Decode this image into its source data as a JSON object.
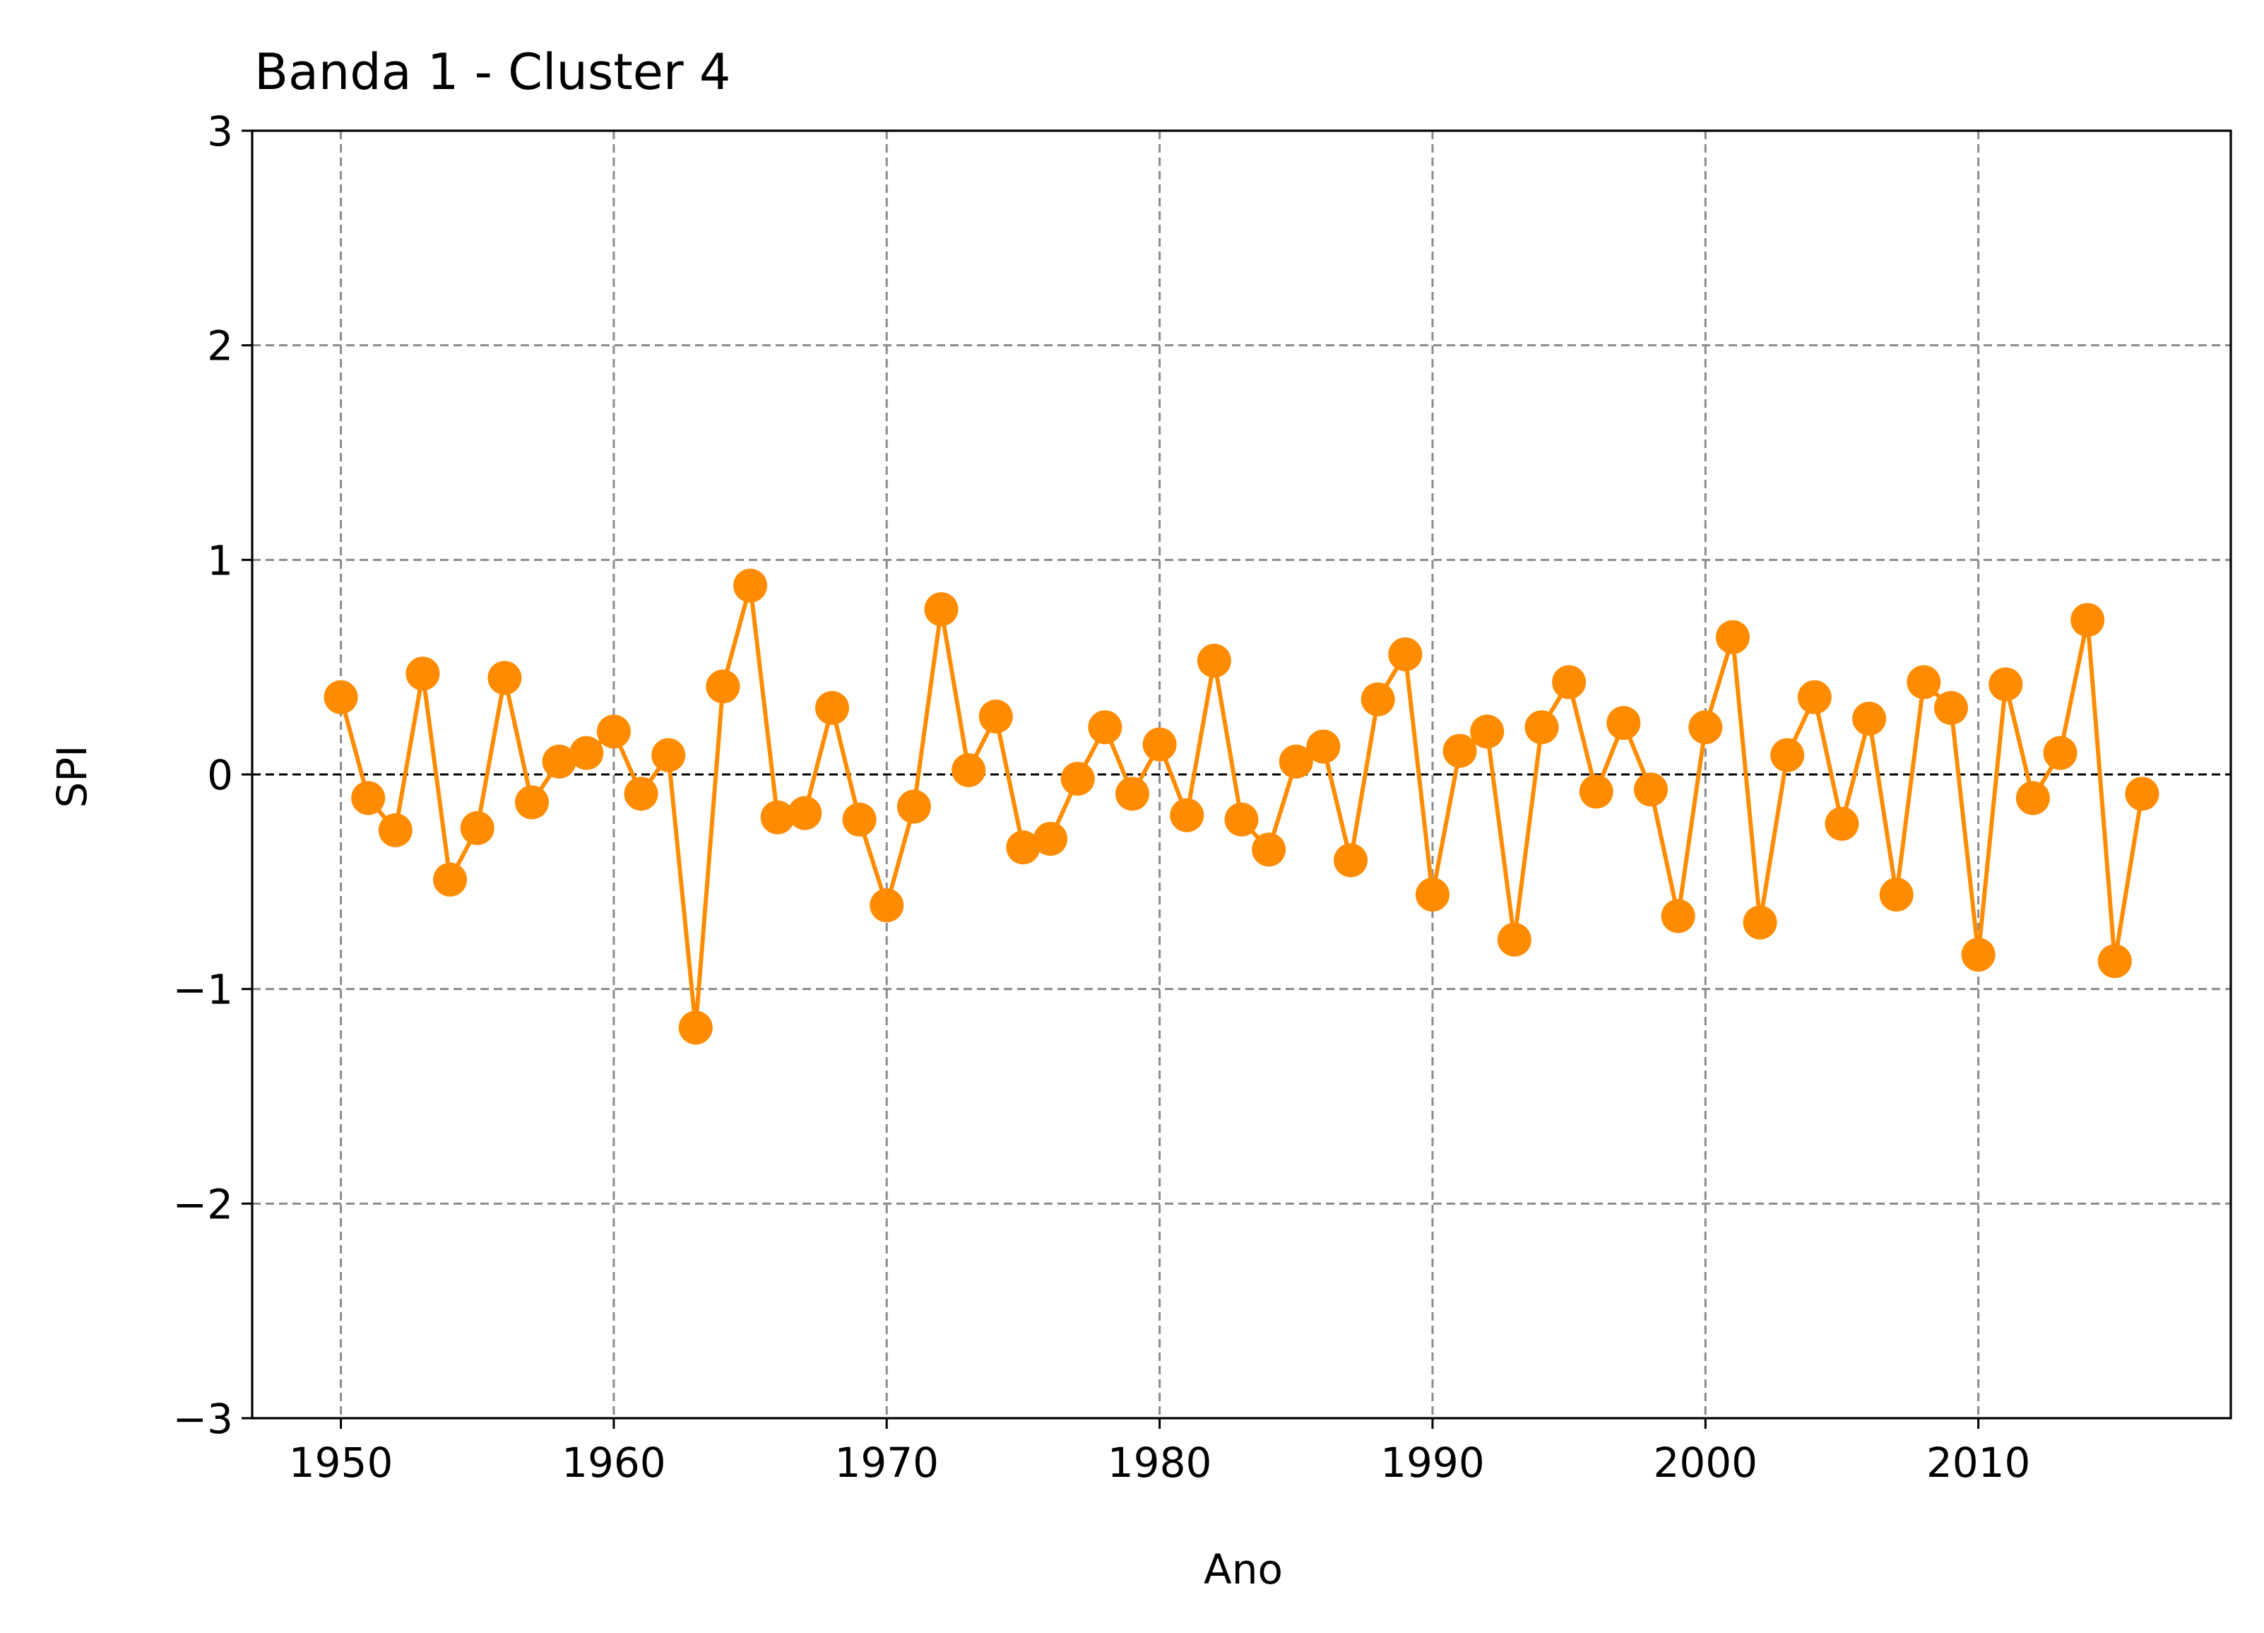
{
  "chart_data": {
    "type": "line",
    "title": "Banda 1 - Cluster 4",
    "xlabel": "Ano",
    "ylabel": "SPI",
    "xlim": [
      1946.75,
      2019.25
    ],
    "ylim": [
      -3,
      3
    ],
    "xticks": [
      1950,
      1960,
      1970,
      1980,
      1990,
      2000,
      2010
    ],
    "yticks": [
      -3,
      -2,
      -1,
      0,
      1,
      2,
      3
    ],
    "ytick_labels": [
      "−3",
      "−2",
      "−1",
      "0",
      "1",
      "2",
      "3"
    ],
    "grid": true,
    "reference_line": 0,
    "color": "#ff8c00",
    "x": [
      1950,
      1951,
      1952,
      1953,
      1954,
      1955,
      1956,
      1957,
      1958,
      1959,
      1960,
      1961,
      1962,
      1963,
      1964,
      1965,
      1966,
      1967,
      1968,
      1969,
      1970,
      1971,
      1972,
      1973,
      1974,
      1975,
      1976,
      1977,
      1978,
      1979,
      1980,
      1981,
      1982,
      1983,
      1984,
      1985,
      1986,
      1987,
      1988,
      1989,
      1990,
      1991,
      1992,
      1993,
      1994,
      1995,
      1996,
      1997,
      1998,
      1999,
      2000,
      2001,
      2002,
      2003,
      2004,
      2005,
      2006,
      2007,
      2008,
      2009,
      2010,
      2011,
      2012,
      2013,
      2014,
      2015,
      2016
    ],
    "y": [
      0.36,
      -0.11,
      -0.26,
      0.47,
      -0.49,
      -0.25,
      0.45,
      -0.13,
      0.06,
      0.1,
      0.2,
      -0.09,
      0.09,
      -1.18,
      0.41,
      0.88,
      -0.2,
      -0.18,
      0.31,
      -0.21,
      -0.61,
      -0.15,
      0.77,
      0.02,
      0.27,
      -0.34,
      -0.3,
      -0.02,
      0.22,
      -0.09,
      0.14,
      -0.19,
      0.53,
      -0.21,
      -0.35,
      0.06,
      0.13,
      -0.4,
      0.35,
      0.56,
      -0.56,
      0.11,
      0.2,
      -0.77,
      0.22,
      0.43,
      -0.08,
      0.24,
      -0.07,
      -0.66,
      0.22,
      0.64,
      -0.69,
      0.09,
      0.36,
      -0.23,
      0.26,
      -0.56,
      0.43,
      0.31,
      -0.84,
      0.42,
      -0.11,
      0.1,
      0.72,
      -0.87,
      -0.09
    ]
  }
}
